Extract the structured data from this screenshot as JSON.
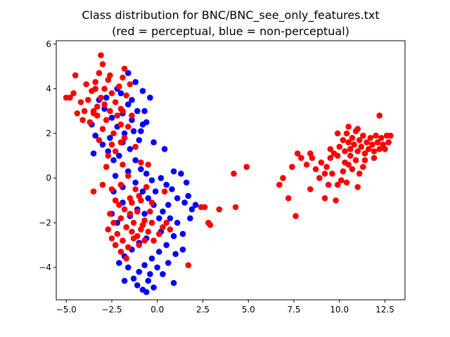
{
  "chart_data": {
    "type": "scatter",
    "title": "Class distribution for BNC/BNC_see_only_features.txt",
    "subtitle": "(red = perceptual, blue = non-perceptual)",
    "xlabel": "",
    "ylabel": "",
    "xlim": [
      -5.55,
      13.6
    ],
    "ylim": [
      -5.45,
      6.15
    ],
    "xticks": [
      -5.0,
      -2.5,
      0.0,
      2.5,
      5.0,
      7.5,
      10.0,
      12.5
    ],
    "xtick_labels": [
      "−5.0",
      "−2.5",
      "0.0",
      "2.5",
      "5.0",
      "7.5",
      "10.0",
      "12.5"
    ],
    "yticks": [
      -4,
      -2,
      0,
      2,
      4,
      6
    ],
    "ytick_labels": [
      "−4",
      "−2",
      "0",
      "2",
      "4",
      "6"
    ],
    "grid": false,
    "series": [
      {
        "color": "#0000ff",
        "points": [
          [
            -3.2,
            3.5
          ],
          [
            -2.9,
            3.1
          ],
          [
            -2.5,
            2.7
          ],
          [
            -2.2,
            2.3
          ],
          [
            -1.9,
            2.9
          ],
          [
            -1.6,
            3.3
          ],
          [
            -1.4,
            2.6
          ],
          [
            -1.1,
            3.0
          ],
          [
            -0.9,
            2.1
          ],
          [
            -0.6,
            2.5
          ],
          [
            -0.4,
            3.6
          ],
          [
            -0.8,
            3.9
          ],
          [
            -1.2,
            4.3
          ],
          [
            -1.6,
            4.7
          ],
          [
            -2.0,
            3.8
          ],
          [
            -3.4,
            1.9
          ],
          [
            -3.6,
            2.4
          ],
          [
            -3.0,
            1.5
          ],
          [
            -2.7,
            1.2
          ],
          [
            -3.5,
            1.1
          ],
          [
            -2.4,
            0.8
          ],
          [
            -1.9,
            1.6
          ],
          [
            -1.5,
            1.3
          ],
          [
            -1.2,
            0.8
          ],
          [
            -0.9,
            0.4
          ],
          [
            -0.6,
            0.2
          ],
          [
            -0.3,
            -0.1
          ],
          [
            0.2,
            0.0
          ],
          [
            0.5,
            -0.3
          ],
          [
            0.8,
            -0.5
          ],
          [
            1.1,
            -0.9
          ],
          [
            1.5,
            -1.1
          ],
          [
            1.9,
            -1.4
          ],
          [
            1.6,
            -0.2
          ],
          [
            1.3,
            0.2
          ],
          [
            0.9,
            0.3
          ],
          [
            0.4,
            1.3
          ],
          [
            -0.2,
            1.6
          ],
          [
            -2.3,
            0.1
          ],
          [
            -1.9,
            -0.4
          ],
          [
            -1.6,
            0.3
          ],
          [
            -1.2,
            -0.2
          ],
          [
            -0.8,
            -0.6
          ],
          [
            -0.5,
            -0.9
          ],
          [
            -0.2,
            -1.2
          ],
          [
            0.3,
            -1.5
          ],
          [
            0.7,
            -1.8
          ],
          [
            1.1,
            -2.0
          ],
          [
            1.4,
            -2.5
          ],
          [
            0.9,
            -2.6
          ],
          [
            0.5,
            -3.0
          ],
          [
            0.1,
            -3.3
          ],
          [
            -0.3,
            -3.6
          ],
          [
            -0.7,
            -3.9
          ],
          [
            -1.0,
            -4.2
          ],
          [
            -1.3,
            -4.5
          ],
          [
            -1.6,
            -4.0
          ],
          [
            -0.5,
            -4.6
          ],
          [
            -0.2,
            -4.9
          ],
          [
            -0.8,
            -5.0
          ],
          [
            -0.6,
            -5.1
          ],
          [
            0.3,
            -4.3
          ],
          [
            0.6,
            -3.8
          ],
          [
            1.0,
            -3.4
          ],
          [
            1.4,
            -3.2
          ],
          [
            -1.8,
            -3.5
          ],
          [
            -2.1,
            -3.8
          ],
          [
            -1.4,
            -3.2
          ],
          [
            -1.0,
            -2.9
          ],
          [
            -0.6,
            -2.7
          ],
          [
            0.2,
            -2.4
          ],
          [
            -2.2,
            -2.0
          ],
          [
            -2.5,
            -1.6
          ],
          [
            -1.9,
            -1.1
          ],
          [
            -1.5,
            -1.7
          ],
          [
            -1.1,
            -1.4
          ],
          [
            -0.7,
            -1.6
          ],
          [
            -0.3,
            -2.0
          ],
          [
            0.1,
            -1.8
          ],
          [
            0.6,
            -1.2
          ],
          [
            1.8,
            -1.8
          ],
          [
            2.1,
            -1.2
          ],
          [
            1.7,
            -0.8
          ],
          [
            -1.8,
            -4.6
          ],
          [
            -1.1,
            -4.8
          ],
          [
            -0.4,
            -4.3
          ],
          [
            0.0,
            -4.0
          ],
          [
            0.9,
            -4.7
          ],
          [
            -2.6,
            1.8
          ],
          [
            -2.1,
            1.0
          ],
          [
            -0.8,
            2.4
          ],
          [
            -1.3,
            2.1
          ],
          [
            -1.0,
            1.7
          ],
          [
            -2.8,
            3.6
          ],
          [
            -2.2,
            4.0
          ],
          [
            -1.4,
            3.5
          ],
          [
            -0.7,
            3.0
          ],
          [
            -1.8,
            2.0
          ],
          [
            -2.4,
            -0.6
          ],
          [
            -0.1,
            -0.6
          ]
        ]
      },
      {
        "color": "#ff0000",
        "points": [
          [
            -4.0,
            3.0
          ],
          [
            -3.8,
            3.5
          ],
          [
            -3.6,
            3.9
          ],
          [
            -3.4,
            4.3
          ],
          [
            -3.2,
            4.7
          ],
          [
            -3.0,
            5.1
          ],
          [
            -3.5,
            2.9
          ],
          [
            -3.3,
            3.2
          ],
          [
            -3.1,
            3.6
          ],
          [
            -2.9,
            4.0
          ],
          [
            -2.7,
            4.4
          ],
          [
            -2.5,
            3.8
          ],
          [
            -2.3,
            3.4
          ],
          [
            -2.1,
            4.1
          ],
          [
            -1.9,
            4.5
          ],
          [
            -2.6,
            3.0
          ],
          [
            -2.8,
            2.6
          ],
          [
            -3.0,
            2.2
          ],
          [
            -2.4,
            2.0
          ],
          [
            -2.0,
            2.4
          ],
          [
            -1.8,
            1.8
          ],
          [
            -3.7,
            2.5
          ],
          [
            -4.2,
            3.4
          ],
          [
            -4.4,
            2.9
          ],
          [
            -4.6,
            3.8
          ],
          [
            -4.8,
            3.6
          ],
          [
            -5.0,
            3.6
          ],
          [
            -4.5,
            4.6
          ],
          [
            -3.9,
            4.2
          ],
          [
            -3.5,
            3.0
          ],
          [
            -3.3,
            2.8
          ],
          [
            -2.2,
            2.8
          ],
          [
            -2.0,
            3.1
          ],
          [
            -1.7,
            3.7
          ],
          [
            -1.5,
            4.2
          ],
          [
            -3.1,
            5.5
          ],
          [
            -3.4,
            4.0
          ],
          [
            -2.6,
            4.6
          ],
          [
            -2.9,
            3.3
          ],
          [
            -4.1,
            2.6
          ],
          [
            -2.5,
            1.5
          ],
          [
            -2.3,
            1.2
          ],
          [
            -1.9,
            0.6
          ],
          [
            -1.6,
            0.1
          ],
          [
            -2.0,
            -0.3
          ],
          [
            -2.5,
            -0.5
          ],
          [
            -3.0,
            -0.3
          ],
          [
            -3.5,
            -0.6
          ],
          [
            -2.8,
            0.5
          ],
          [
            -2.3,
            -1.0
          ],
          [
            -2.6,
            -1.6
          ],
          [
            -2.4,
            -2.0
          ],
          [
            -2.2,
            -2.5
          ],
          [
            -2.0,
            -1.8
          ],
          [
            -1.7,
            -2.2
          ],
          [
            -1.5,
            -1.6
          ],
          [
            -1.3,
            -2.0
          ],
          [
            -1.1,
            -1.5
          ],
          [
            -0.9,
            -2.3
          ],
          [
            -0.7,
            -1.9
          ],
          [
            -0.5,
            -2.4
          ],
          [
            -0.3,
            -2.0
          ],
          [
            -1.9,
            -2.8
          ],
          [
            -1.6,
            -3.1
          ],
          [
            -1.3,
            -2.7
          ],
          [
            -1.0,
            -3.0
          ],
          [
            -0.7,
            -2.8
          ],
          [
            -2.3,
            -3.0
          ],
          [
            -2.0,
            -3.3
          ],
          [
            -1.7,
            -3.6
          ],
          [
            -1.4,
            -2.4
          ],
          [
            -1.1,
            -2.6
          ],
          [
            -0.8,
            -2.1
          ],
          [
            -0.4,
            -1.5
          ],
          [
            -0.2,
            -2.8
          ],
          [
            0.1,
            -2.5
          ],
          [
            0.3,
            -2.2
          ],
          [
            -2.5,
            -2.7
          ],
          [
            -2.7,
            -2.3
          ],
          [
            -1.8,
            -1.4
          ],
          [
            -1.5,
            -0.9
          ],
          [
            -1.2,
            -0.5
          ],
          [
            -0.9,
            -1.0
          ],
          [
            -0.6,
            -0.4
          ],
          [
            -0.3,
            -1.1
          ],
          [
            -2.1,
            -1.2
          ],
          [
            -1.4,
            -1.1
          ],
          [
            -1.0,
            -0.8
          ],
          [
            0.5,
            -2.0
          ],
          [
            0.7,
            -2.3
          ],
          [
            1.7,
            -3.9
          ],
          [
            2.4,
            -1.3
          ],
          [
            2.8,
            -2.0
          ],
          [
            3.4,
            -1.4
          ],
          [
            4.3,
            -1.3
          ],
          [
            4.2,
            0.2
          ],
          [
            4.9,
            0.5
          ],
          [
            2.6,
            -1.3
          ],
          [
            2.9,
            -2.1
          ],
          [
            -1.9,
            3.0
          ],
          [
            -1.4,
            2.8
          ],
          [
            -2.7,
            1.0
          ],
          [
            -1.6,
            2.3
          ],
          [
            -3.2,
            1.7
          ],
          [
            -2.0,
            1.6
          ],
          [
            -1.2,
            1.4
          ],
          [
            -0.9,
            0.7
          ],
          [
            -0.5,
            0.6
          ],
          [
            0.4,
            -0.6
          ],
          [
            -1.8,
            4.9
          ],
          [
            6.7,
            -0.3
          ],
          [
            6.9,
            0.0
          ],
          [
            7.2,
            -0.9
          ],
          [
            7.4,
            0.5
          ],
          [
            7.6,
            -1.7
          ],
          [
            7.7,
            1.1
          ],
          [
            7.9,
            0.9
          ],
          [
            8.2,
            0.6
          ],
          [
            8.4,
            1.1
          ],
          [
            8.5,
            0.9
          ],
          [
            8.4,
            -0.5
          ],
          [
            8.7,
            0.4
          ],
          [
            8.9,
            0.0
          ],
          [
            9.0,
            0.7
          ],
          [
            9.2,
            0.2
          ],
          [
            9.3,
            0.5
          ],
          [
            9.4,
            -0.3
          ],
          [
            9.5,
            0.9
          ],
          [
            9.6,
            0.2
          ],
          [
            9.8,
            -1.0
          ],
          [
            9.9,
            -0.3
          ],
          [
            9.9,
            1.0
          ],
          [
            10.1,
            -0.1
          ],
          [
            10.2,
            0.3
          ],
          [
            10.3,
            0.7
          ],
          [
            10.4,
            -0.2
          ],
          [
            10.5,
            0.6
          ],
          [
            10.6,
            1.0
          ],
          [
            10.7,
            0.4
          ],
          [
            10.9,
            0.8
          ],
          [
            11.0,
            -0.4
          ],
          [
            11.1,
            0.2
          ],
          [
            9.2,
            -0.9
          ],
          [
            9.5,
            1.3
          ],
          [
            9.7,
            1.1
          ],
          [
            10.0,
            1.4
          ],
          [
            10.2,
            1.7
          ],
          [
            10.3,
            1.2
          ],
          [
            10.4,
            2.0
          ],
          [
            10.5,
            1.6
          ],
          [
            10.6,
            1.3
          ],
          [
            10.7,
            1.8
          ],
          [
            10.8,
            1.5
          ],
          [
            10.9,
            2.1
          ],
          [
            11.0,
            1.2
          ],
          [
            11.1,
            1.7
          ],
          [
            11.2,
            1.4
          ],
          [
            11.3,
            1.9
          ],
          [
            11.4,
            1.1
          ],
          [
            11.5,
            1.6
          ],
          [
            11.6,
            1.3
          ],
          [
            11.7,
            1.8
          ],
          [
            11.8,
            1.5
          ],
          [
            11.9,
            1.2
          ],
          [
            12.0,
            1.9
          ],
          [
            12.1,
            1.6
          ],
          [
            12.2,
            1.3
          ],
          [
            12.3,
            1.8
          ],
          [
            12.4,
            1.5
          ],
          [
            12.6,
            1.9
          ],
          [
            12.7,
            1.6
          ],
          [
            12.8,
            1.9
          ],
          [
            12.5,
            1.3
          ],
          [
            11.4,
            0.8
          ],
          [
            11.9,
            0.9
          ],
          [
            11.0,
            2.2
          ],
          [
            10.5,
            2.3
          ],
          [
            12.2,
            2.8
          ],
          [
            11.3,
            0.5
          ],
          [
            9.9,
            2.0
          ]
        ]
      }
    ]
  }
}
